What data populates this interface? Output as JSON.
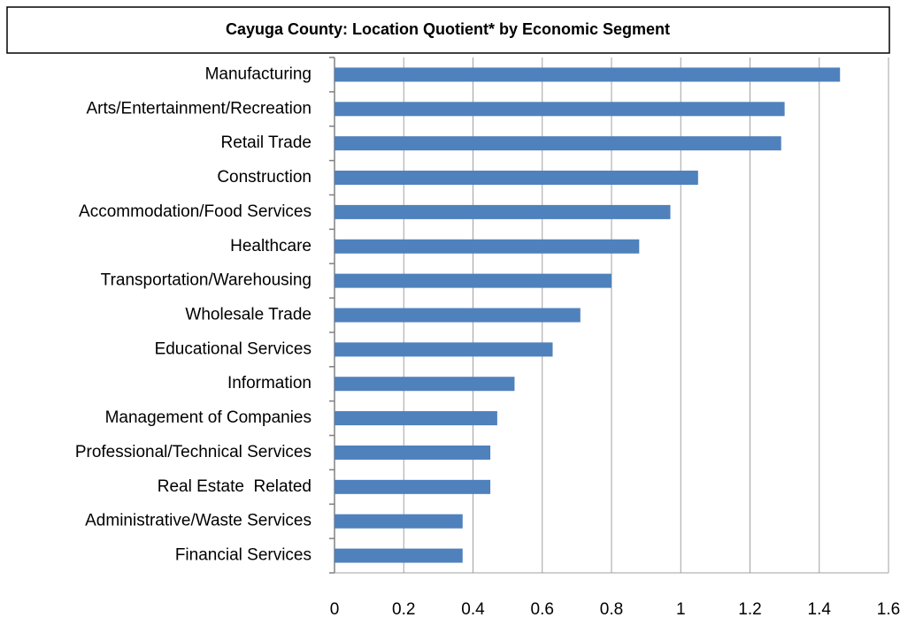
{
  "chart_data": {
    "type": "bar",
    "orientation": "horizontal",
    "title": "Cayuga County: Location Quotient* by Economic Segment",
    "categories": [
      "Manufacturing",
      "Arts/Entertainment/Recreation",
      "Retail Trade",
      "Construction",
      "Accommodation/Food Services",
      "Healthcare",
      "Transportation/Warehousing",
      "Wholesale Trade",
      "Educational Services",
      "Information",
      "Management of Companies",
      "Professional/Technical Services",
      "Real Estate  Related",
      "Administrative/Waste Services",
      "Financial Services"
    ],
    "values": [
      1.46,
      1.3,
      1.29,
      1.05,
      0.97,
      0.88,
      0.8,
      0.71,
      0.63,
      0.52,
      0.47,
      0.45,
      0.45,
      0.37,
      0.37
    ],
    "color": "#4f81bd",
    "xlim": [
      0,
      1.6
    ],
    "xticks": [
      0,
      0.2,
      0.4,
      0.6,
      0.8,
      1,
      1.2,
      1.4,
      1.6
    ],
    "grid": true
  }
}
